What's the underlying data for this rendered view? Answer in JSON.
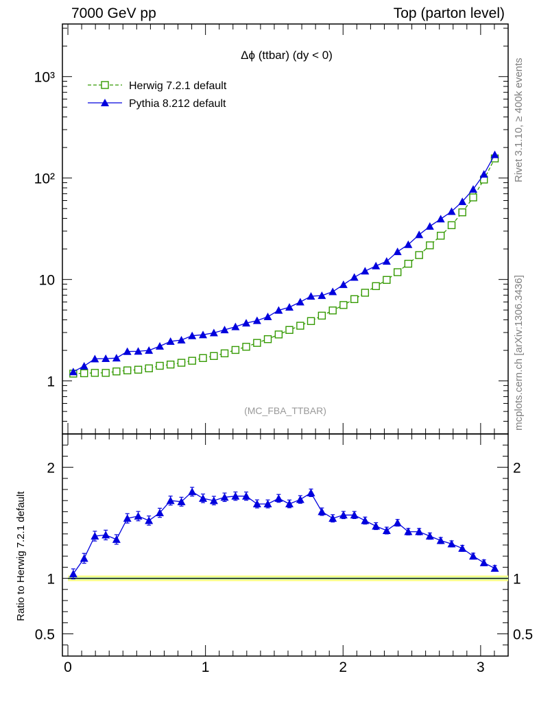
{
  "header": {
    "left": "7000 GeV pp",
    "right": "Top (parton level)"
  },
  "side_labels": {
    "rivet": "Rivet 3.1.10, ≥ 400k events",
    "mcplots": "mcplots.cern.ch [arXiv:1306.3436]"
  },
  "watermark": "(MC_FBA_TTBAR)",
  "colors": {
    "herwig": "#339900",
    "pythia": "#0000dd",
    "band_outer": "#ffff80",
    "band_inner": "#b9f0b9"
  },
  "chart_data": [
    {
      "type": "line",
      "title": "Δϕ (ttbar) (dy < 0)",
      "xlabel": "",
      "ylabel": "",
      "yscale": "log",
      "xlim": [
        -0.04,
        3.2
      ],
      "ylim": [
        0.3,
        3300
      ],
      "y_tick_labels": [
        "1",
        "10",
        "10²",
        "10³"
      ],
      "y_tick_values": [
        1,
        10,
        100,
        1000
      ],
      "x": [
        0.039,
        0.118,
        0.196,
        0.275,
        0.353,
        0.432,
        0.511,
        0.589,
        0.668,
        0.746,
        0.825,
        0.903,
        0.982,
        1.061,
        1.139,
        1.218,
        1.296,
        1.375,
        1.453,
        1.532,
        1.61,
        1.689,
        1.767,
        1.846,
        1.925,
        2.003,
        2.082,
        2.16,
        2.239,
        2.317,
        2.396,
        2.474,
        2.553,
        2.631,
        2.71,
        2.789,
        2.867,
        2.946,
        3.024,
        3.103
      ],
      "series": [
        {
          "name": "Herwig 7.2.1 default",
          "marker": "open-square",
          "line": "dashed",
          "values": [
            1.18,
            1.19,
            1.2,
            1.2,
            1.24,
            1.27,
            1.29,
            1.33,
            1.41,
            1.45,
            1.51,
            1.58,
            1.68,
            1.76,
            1.87,
            2.02,
            2.17,
            2.37,
            2.58,
            2.87,
            3.18,
            3.5,
            3.89,
            4.4,
            4.95,
            5.6,
            6.4,
            7.4,
            8.6,
            9.9,
            11.8,
            14.3,
            17.4,
            21.7,
            27.0,
            34.3,
            45.9,
            64.4,
            96.6,
            156.0
          ]
        },
        {
          "name": "Pythia 8.212 default",
          "marker": "filled-triangle",
          "line": "solid",
          "values": [
            1.23,
            1.4,
            1.65,
            1.66,
            1.68,
            1.95,
            1.96,
            2.0,
            2.2,
            2.45,
            2.53,
            2.79,
            2.85,
            2.98,
            3.19,
            3.42,
            3.72,
            3.93,
            4.29,
            4.97,
            5.33,
            6.0,
            6.84,
            6.94,
            7.58,
            8.9,
            10.5,
            12.1,
            13.6,
            15.1,
            18.8,
            22.1,
            27.6,
            33.4,
            39.5,
            46.8,
            58.5,
            77.5,
            109.0,
            170.0
          ]
        }
      ]
    },
    {
      "type": "line",
      "title": "",
      "xlabel": "",
      "ylabel": "Ratio to Herwig 7.2.1 default",
      "xlim": [
        -0.04,
        3.2
      ],
      "ylim": [
        0.3,
        2.3
      ],
      "x_tick_labels": [
        "0",
        "1",
        "2",
        "3"
      ],
      "x_tick_values": [
        0,
        1,
        2,
        3
      ],
      "y_tick_labels": [
        "0.5",
        "1",
        "2"
      ],
      "y_tick_values": [
        0.5,
        1,
        2
      ],
      "x": [
        0.039,
        0.118,
        0.196,
        0.275,
        0.353,
        0.432,
        0.511,
        0.589,
        0.668,
        0.746,
        0.825,
        0.903,
        0.982,
        1.061,
        1.139,
        1.218,
        1.296,
        1.375,
        1.453,
        1.532,
        1.61,
        1.689,
        1.767,
        1.846,
        1.925,
        2.003,
        2.082,
        2.16,
        2.239,
        2.317,
        2.396,
        2.474,
        2.553,
        2.631,
        2.71,
        2.789,
        2.867,
        2.946,
        3.024,
        3.103
      ],
      "series": [
        {
          "name": "Pythia 8.212 default",
          "marker": "filled-triangle",
          "line": "solid",
          "values": [
            1.04,
            1.18,
            1.38,
            1.39,
            1.35,
            1.54,
            1.56,
            1.52,
            1.59,
            1.7,
            1.69,
            1.78,
            1.72,
            1.7,
            1.73,
            1.74,
            1.74,
            1.67,
            1.67,
            1.72,
            1.67,
            1.71,
            1.77,
            1.6,
            1.54,
            1.57,
            1.57,
            1.52,
            1.47,
            1.43,
            1.5,
            1.42,
            1.42,
            1.38,
            1.34,
            1.31,
            1.27,
            1.2,
            1.14,
            1.09
          ]
        }
      ]
    }
  ]
}
